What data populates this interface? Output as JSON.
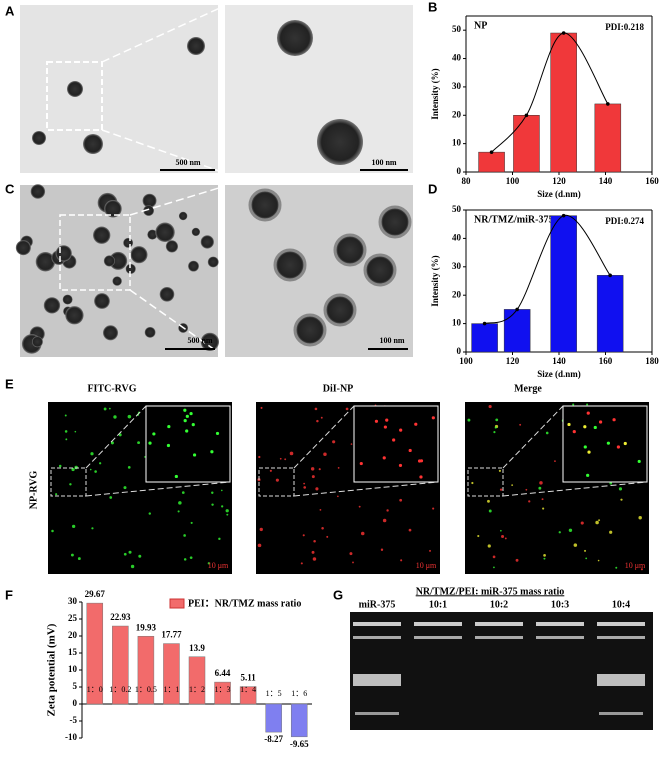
{
  "panel_labels": [
    "A",
    "B",
    "C",
    "D",
    "E",
    "F",
    "G"
  ],
  "tem_scales": [
    "500 nm",
    "100 nm",
    "500 nm",
    "100 nm"
  ],
  "fluorescence": {
    "channels": [
      "FITC-RVG",
      "DiI-NP",
      "Merge"
    ],
    "row_label": "NP-RVG",
    "scales": [
      "10 μm",
      "10 μm",
      "10 μm"
    ]
  },
  "gel": {
    "title": "NR/TMZ/PEI: miR-375  mass ratio",
    "lanes": [
      "miR-375",
      "10:1",
      "10:2",
      "10:3",
      "10:4"
    ]
  },
  "chart_data": [
    {
      "type": "histbar",
      "title": "NP",
      "annotation": "PDI:0.218",
      "x_label": "Size (d.nm)",
      "y_label": "Intensity (%)",
      "x": [
        91,
        106,
        122,
        141
      ],
      "values": [
        7,
        20,
        49,
        24
      ],
      "color": "#f0383a",
      "smooth_curve": true,
      "xlim": [
        80,
        160
      ],
      "xticks": [
        80,
        100,
        120,
        140,
        160
      ],
      "ylim": [
        0,
        55
      ],
      "yticks": [
        0,
        10,
        20,
        30,
        40,
        50
      ]
    },
    {
      "type": "histbar",
      "title": "NR/TMZ/miR-375",
      "annotation": "PDI:0.274",
      "x_label": "Size (d.nm)",
      "y_label": "Intensity (%)",
      "x": [
        108,
        122,
        142,
        162
      ],
      "values": [
        10,
        15,
        48,
        27
      ],
      "color": "#1010f0",
      "smooth_curve": true,
      "xlim": [
        100,
        180
      ],
      "xticks": [
        100,
        120,
        140,
        160,
        180
      ],
      "ylim": [
        0,
        50
      ],
      "yticks": [
        0,
        10,
        20,
        30,
        40,
        50
      ]
    },
    {
      "type": "bar",
      "y_label": "Zeta potential (mV)",
      "legend": "PEI：NR/TMZ mass ratio",
      "categories": [
        "1：0",
        "1：0.2",
        "1：0.5",
        "1：1",
        "1：2",
        "1：3",
        "1：4",
        "1：5",
        "1：6"
      ],
      "values": [
        29.67,
        22.93,
        19.93,
        17.77,
        13.9,
        6.44,
        5.11,
        -8.27,
        -9.65
      ],
      "colors": [
        "#f26b6b",
        "#f26b6b",
        "#f26b6b",
        "#f26b6b",
        "#f26b6b",
        "#f26b6b",
        "#f26b6b",
        "#7f7ff0",
        "#7f7ff0"
      ],
      "ylim": [
        -10,
        30
      ],
      "yticks": [
        -10,
        -5,
        0,
        5,
        10,
        15,
        20,
        25,
        30
      ]
    }
  ]
}
